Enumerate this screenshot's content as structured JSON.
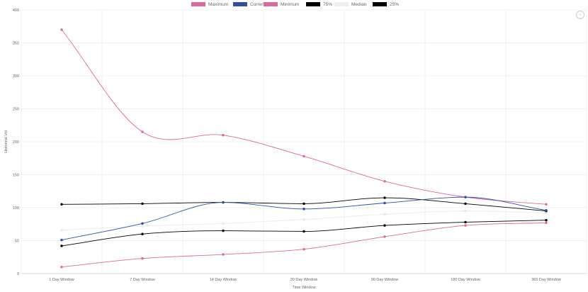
{
  "chart_data": {
    "type": "line",
    "categories": [
      "1 Day Window",
      "7 Day Window",
      "14 Day Window",
      "30 Day Window",
      "90 Day Window",
      "180 Day Window",
      "365 Day Window"
    ],
    "xlabel": "Time Window",
    "ylabel": "Historical Vol",
    "ylim": [
      0,
      400
    ],
    "yticks": [
      0,
      50,
      100,
      150,
      200,
      250,
      300,
      350,
      400
    ],
    "grid": true,
    "legend_position": "top",
    "series": [
      {
        "name": "Maximum",
        "color": "#d9699e",
        "values": [
          370,
          215,
          210,
          178,
          140,
          116,
          105
        ]
      },
      {
        "name": "Current",
        "color": "#2f4e9b",
        "values": [
          51,
          76,
          108,
          98,
          107,
          116,
          96
        ]
      },
      {
        "name": "Minimum",
        "color": "#d9699e",
        "values": [
          10,
          23,
          29,
          37,
          56,
          73,
          77
        ]
      },
      {
        "name": "75%",
        "color": "#000000",
        "values": [
          105,
          106,
          108,
          106,
          115,
          106,
          95
        ]
      },
      {
        "name": "Median",
        "color": "#eeeeee",
        "values": [
          66,
          72,
          76,
          82,
          90,
          95,
          92
        ]
      },
      {
        "name": "25%",
        "color": "#000000",
        "values": [
          42,
          60,
          65,
          64,
          73,
          78,
          81
        ]
      }
    ]
  }
}
